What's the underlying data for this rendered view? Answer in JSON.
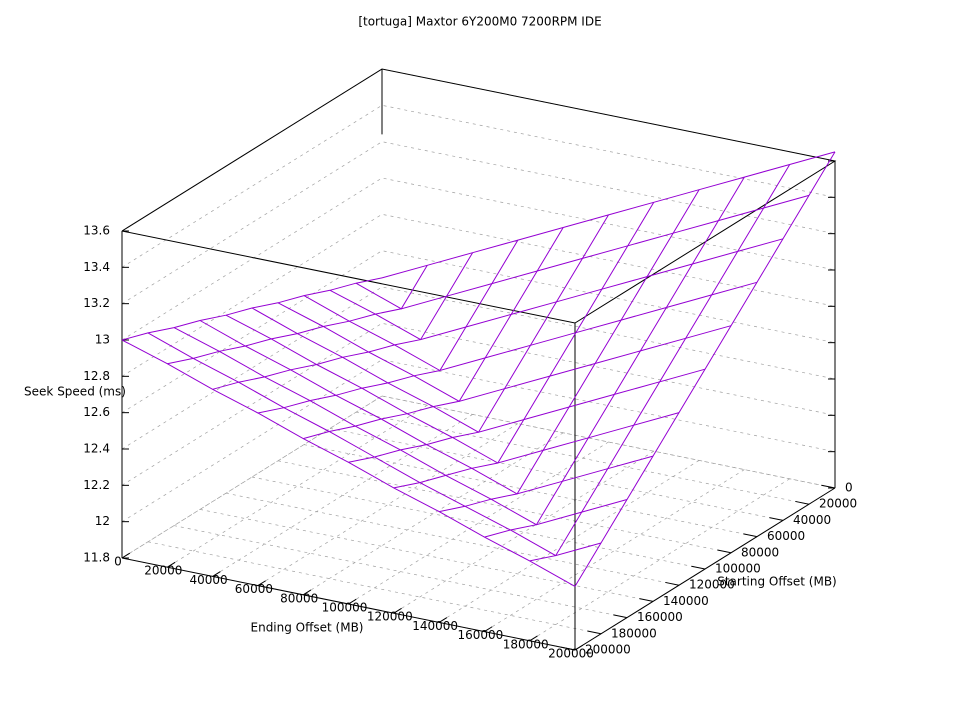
{
  "chart_data": {
    "type": "surface",
    "title": "[tortuga] Maxtor 6Y200M0 7200RPM IDE",
    "xlabel": "Ending Offset (MB)",
    "ylabel": "Starting Offset (MB)",
    "zlabel": "Seek Speed (ms)",
    "color": "#9400d3",
    "grid": true,
    "x": [
      0,
      20000,
      40000,
      60000,
      80000,
      100000,
      120000,
      140000,
      160000,
      180000,
      200000
    ],
    "y": [
      0,
      20000,
      40000,
      60000,
      80000,
      100000,
      120000,
      140000,
      160000,
      180000,
      200000
    ],
    "z": [
      [
        12.45,
        12.57,
        12.69,
        12.81,
        12.93,
        13.05,
        13.17,
        13.29,
        13.41,
        13.53,
        13.65
      ],
      [
        12.51,
        12.42,
        12.54,
        12.66,
        12.78,
        12.9,
        13.02,
        13.14,
        13.26,
        13.38,
        13.5
      ],
      [
        12.56,
        12.48,
        12.39,
        12.51,
        12.63,
        12.75,
        12.87,
        12.99,
        13.11,
        13.23,
        13.35
      ],
      [
        12.62,
        12.53,
        12.45,
        12.36,
        12.48,
        12.6,
        12.72,
        12.84,
        12.96,
        13.08,
        13.2
      ],
      [
        12.67,
        12.59,
        12.5,
        12.42,
        12.33,
        12.45,
        12.57,
        12.69,
        12.81,
        12.93,
        13.05
      ],
      [
        12.73,
        12.64,
        12.56,
        12.47,
        12.39,
        12.3,
        12.42,
        12.54,
        12.66,
        12.78,
        12.9
      ],
      [
        12.78,
        12.7,
        12.61,
        12.53,
        12.44,
        12.36,
        12.27,
        12.39,
        12.51,
        12.63,
        12.75
      ],
      [
        12.84,
        12.75,
        12.67,
        12.58,
        12.5,
        12.41,
        12.33,
        12.24,
        12.36,
        12.48,
        12.6
      ],
      [
        12.89,
        12.81,
        12.72,
        12.64,
        12.55,
        12.47,
        12.38,
        12.3,
        12.21,
        12.33,
        12.45
      ],
      [
        12.95,
        12.86,
        12.78,
        12.69,
        12.61,
        12.52,
        12.43,
        12.35,
        12.27,
        12.18,
        12.3
      ],
      [
        13.0,
        12.92,
        12.83,
        12.75,
        12.66,
        12.58,
        12.49,
        12.41,
        12.32,
        12.24,
        12.15
      ]
    ],
    "xlim": [
      0,
      200000
    ],
    "ylim": [
      0,
      200000
    ],
    "zlim": [
      11.8,
      13.6
    ],
    "xticks": [
      0,
      20000,
      40000,
      60000,
      80000,
      100000,
      120000,
      140000,
      160000,
      180000,
      200000
    ],
    "yticks": [
      0,
      20000,
      40000,
      60000,
      80000,
      100000,
      120000,
      140000,
      160000,
      180000,
      200000
    ],
    "zticks": [
      11.8,
      12,
      12.2,
      12.4,
      12.6,
      12.8,
      13,
      13.2,
      13.4,
      13.6
    ]
  }
}
